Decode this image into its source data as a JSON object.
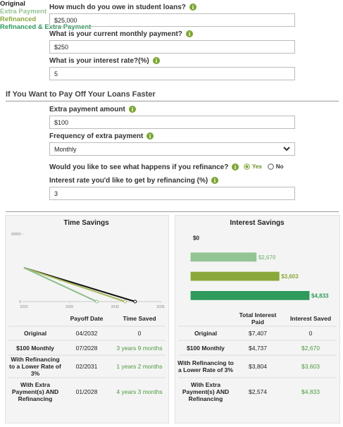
{
  "form": {
    "loan": {
      "label": "How much do you owe in student loans?",
      "value": "$25,000"
    },
    "payment": {
      "label": "What is your current monthly payment?",
      "value": "$250"
    },
    "rate": {
      "label": "What is your interest rate?(%)",
      "value": "5"
    },
    "section_title": "If You Want to Pay Off Your Loans Faster",
    "extra": {
      "label": "Extra payment amount",
      "value": "$100"
    },
    "frequency": {
      "label": "Frequency of extra payment",
      "value": "Monthly"
    },
    "refinance": {
      "label": "Would you like to see what happens if you refinance?",
      "options": [
        "Yes",
        "No"
      ],
      "selected": 0
    },
    "refi_rate": {
      "label": "Interest rate you'd like to get by refinancing (%)",
      "value": "3"
    }
  },
  "time_savings": {
    "title": "Time Savings",
    "chart": {
      "type": "line",
      "xlim": [
        2020,
        2035
      ],
      "xticks": [
        2020,
        2025,
        2030,
        2035
      ],
      "ylim": [
        0,
        80000
      ],
      "yticks": [
        0,
        80000
      ],
      "series": [
        {
          "color": "#111111",
          "x": [
            2020,
            2032.2
          ],
          "values": [
            40000,
            0
          ]
        },
        {
          "color": "#a8b85a",
          "x": [
            2020,
            2031.1
          ],
          "values": [
            40000,
            0
          ]
        },
        {
          "color": "#8cc08a",
          "x": [
            2020,
            2028.0
          ],
          "values": [
            40000,
            0
          ]
        }
      ]
    },
    "table": {
      "columns": [
        "Payoff Date",
        "Time Saved"
      ],
      "rows": [
        {
          "label": "Original",
          "payoff": "04/2032",
          "saved": "0"
        },
        {
          "label": "$100 Monthly",
          "payoff": "07/2028",
          "saved": "3 years 9 months"
        },
        {
          "label": "With Refinancing to a Lower Rate of 3%",
          "payoff": "02/2031",
          "saved": "1 years 2 months"
        },
        {
          "label": "With Extra Payment(s) AND Refinancing",
          "payoff": "01/2028",
          "saved": "4 years 3 months"
        }
      ]
    }
  },
  "interest_savings": {
    "title": "Interest Savings",
    "chart": {
      "type": "bar",
      "categories": [
        "Original",
        "Extra Payment",
        "Refinanced",
        "Refinanced & Extra Payment"
      ],
      "values": [
        0,
        2670,
        3603,
        4833
      ],
      "value_labels": [
        "$0",
        "$2,670",
        "$3,603",
        "$4,833"
      ],
      "colors": [
        "#222222",
        "#93c493",
        "#8aa93a",
        "#2e9a5c"
      ]
    },
    "table": {
      "columns": [
        "Total Interest Paid",
        "Interest Saved"
      ],
      "rows": [
        {
          "label": "Original",
          "total": "$7,407",
          "saved": "0"
        },
        {
          "label": "$100 Monthly",
          "total": "$4,737",
          "saved": "$2,670"
        },
        {
          "label": "With Refinancing to a Lower Rate of 3%",
          "total": "$3,804",
          "saved": "$3,603"
        },
        {
          "label": "With Extra Payment(s) AND Refinancing",
          "total": "$2,574",
          "saved": "$4,833"
        }
      ]
    }
  }
}
